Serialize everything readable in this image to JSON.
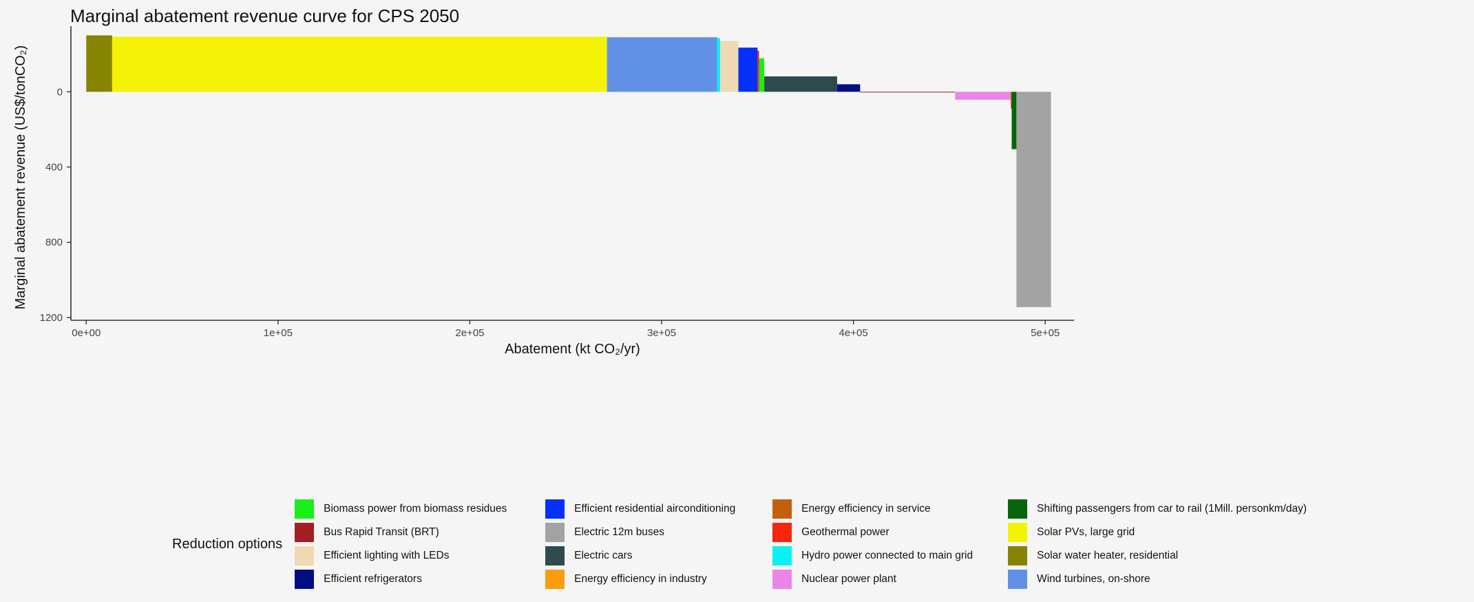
{
  "chart_data": {
    "type": "bar",
    "title": "Marginal abatement revenue curve for CPS 2050",
    "xlabel": "Abatement (kt CO₂/yr)",
    "ylabel": "Marginal abatement revenue (US$/tonCO₂)",
    "xlim": [
      -8000,
      515000
    ],
    "ylim": [
      -305,
      1215
    ],
    "y_reversed": true,
    "x_ticks": [
      0,
      100000,
      200000,
      300000,
      400000,
      500000
    ],
    "x_tick_labels": [
      "0e+00",
      "1e+05",
      "2e+05",
      "3e+05",
      "4e+05",
      "5e+05"
    ],
    "y_ticks": [
      0,
      400,
      800,
      1200
    ],
    "y_tick_labels": [
      "0",
      "400",
      "800",
      "1200"
    ],
    "grid": false,
    "legend_title": "Reduction options",
    "legend_position": "bottom",
    "legend": [
      {
        "label": "Biomass power from biomass residues",
        "color": "#1aee1a"
      },
      {
        "label": "Bus Rapid Transit (BRT)",
        "color": "#a21f24"
      },
      {
        "label": "Efficient lighting with LEDs",
        "color": "#eed9b2"
      },
      {
        "label": "Efficient refrigerators",
        "color": "#020f82"
      },
      {
        "label": "Efficient residential airconditioning",
        "color": "#0430f7"
      },
      {
        "label": "Electric 12m buses",
        "color": "#a3a3a3"
      },
      {
        "label": "Electric cars",
        "color": "#2e4a4c"
      },
      {
        "label": "Energy efficiency in industry",
        "color": "#f89d0e"
      },
      {
        "label": "Energy efficiency in service",
        "color": "#c45f0c"
      },
      {
        "label": "Geothermal power",
        "color": "#f6250b"
      },
      {
        "label": "Hydro power connected to main grid",
        "color": "#08f1f3"
      },
      {
        "label": "Nuclear power plant",
        "color": "#e885e6"
      },
      {
        "label": "Shifting passengers from car to rail (1Mill. personkm/day)",
        "color": "#07660c"
      },
      {
        "label": "Solar PVs, large grid",
        "color": "#f5f305"
      },
      {
        "label": "Solar water heater, residential",
        "color": "#878404"
      },
      {
        "label": "Wind turbines, on-shore",
        "color": "#6191e4"
      }
    ],
    "bars": [
      {
        "option": "Solar water heater, residential",
        "x_start": 0,
        "x_end": 13500,
        "value": -300
      },
      {
        "option": "Solar PVs, large grid",
        "x_start": 13500,
        "x_end": 271500,
        "value": -293
      },
      {
        "option": "Wind turbines, on-shore",
        "x_start": 271500,
        "x_end": 329000,
        "value": -290
      },
      {
        "option": "Hydro power connected to main grid",
        "x_start": 329000,
        "x_end": 330500,
        "value": -285
      },
      {
        "option": "Efficient lighting with LEDs",
        "x_start": 330500,
        "x_end": 340000,
        "value": -270
      },
      {
        "option": "Efficient residential airconditioning",
        "x_start": 340000,
        "x_end": 350000,
        "value": -235
      },
      {
        "option": "Geothermal power",
        "x_start": 350000,
        "x_end": 350800,
        "value": -218
      },
      {
        "option": "Biomass power from biomass residues",
        "x_start": 350800,
        "x_end": 353500,
        "value": -178
      },
      {
        "option": "Electric cars",
        "x_start": 353500,
        "x_end": 391500,
        "value": -82
      },
      {
        "option": "Efficient refrigerators",
        "x_start": 391500,
        "x_end": 403500,
        "value": -40
      },
      {
        "option": "Bus Rapid Transit (BRT)",
        "x_start": 403500,
        "x_end": 453000,
        "value": 3
      },
      {
        "option": "Nuclear power plant",
        "x_start": 453000,
        "x_end": 482000,
        "value": 42
      },
      {
        "option": "Energy efficiency in service",
        "x_start": 482000,
        "x_end": 482500,
        "value": 90
      },
      {
        "option": "Shifting passengers from car to rail (1Mill. personkm/day)",
        "x_start": 482500,
        "x_end": 485000,
        "value": 305
      },
      {
        "option": "Electric 12m buses",
        "x_start": 485000,
        "x_end": 503000,
        "value": 1145
      }
    ]
  }
}
